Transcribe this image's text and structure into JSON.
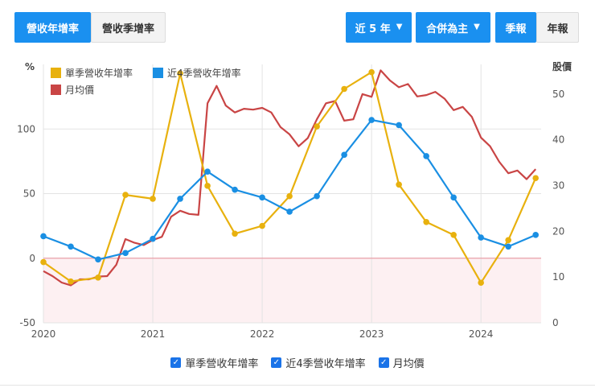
{
  "toolbar": {
    "tab_revenue_yoy": "營收年增率",
    "tab_revenue_qoq": "營收季增率",
    "period_dropdown": "近 5 年",
    "scope_dropdown": "合併為主",
    "freq_quarterly": "季報",
    "freq_annual": "年報"
  },
  "colors": {
    "quarterly_yoy": "#e8b10e",
    "rolling_4q_yoy": "#1a8fe3",
    "monthly_price": "#c94545",
    "zero_line": "#e8a0a8",
    "negative_fill": "#fdf0f2",
    "accent": "#1a90f0"
  },
  "legend_bottom": {
    "quarterly_yoy": "單季營收年增率",
    "rolling_4q_yoy": "近4季營收年增率",
    "monthly_price": "月均價"
  },
  "chart_data": {
    "type": "line",
    "left_axis": {
      "label": "%",
      "ticks": [
        "-50",
        "0",
        "50",
        "100"
      ],
      "range": [
        -50,
        150
      ]
    },
    "right_axis": {
      "label": "股價",
      "ticks": [
        "0",
        "10",
        "20",
        "30",
        "40",
        "50"
      ],
      "range": [
        0,
        56.5
      ]
    },
    "x_ticks": [
      "2020",
      "2021",
      "2022",
      "2023",
      "2024"
    ],
    "x_range": [
      2020.0,
      2024.55
    ],
    "legend_top": [
      {
        "key": "quarterly_yoy",
        "label": "單季營收年增率"
      },
      {
        "key": "rolling_4q_yoy",
        "label": "近4季營收年增率"
      },
      {
        "key": "monthly_price",
        "label": "月均價"
      }
    ],
    "series": [
      {
        "name": "單季營收年增率",
        "key": "quarterly_yoy",
        "axis": "left",
        "points": [
          [
            2020.0,
            -3
          ],
          [
            2020.25,
            -18
          ],
          [
            2020.5,
            -15
          ],
          [
            2020.75,
            49
          ],
          [
            2021.0,
            46
          ],
          [
            2021.25,
            143
          ],
          [
            2021.5,
            56
          ],
          [
            2021.75,
            19
          ],
          [
            2022.0,
            25
          ],
          [
            2022.25,
            48
          ],
          [
            2022.5,
            102
          ],
          [
            2022.75,
            131
          ],
          [
            2023.0,
            144
          ],
          [
            2023.25,
            57
          ],
          [
            2023.5,
            28
          ],
          [
            2023.75,
            18
          ],
          [
            2024.0,
            -19
          ],
          [
            2024.25,
            14
          ],
          [
            2024.5,
            62
          ]
        ]
      },
      {
        "name": "近4季營收年增率",
        "key": "rolling_4q_yoy",
        "axis": "left",
        "points": [
          [
            2020.0,
            17
          ],
          [
            2020.25,
            9
          ],
          [
            2020.5,
            -1
          ],
          [
            2020.75,
            4
          ],
          [
            2021.0,
            15
          ],
          [
            2021.25,
            46
          ],
          [
            2021.5,
            67
          ],
          [
            2021.75,
            53
          ],
          [
            2022.0,
            47
          ],
          [
            2022.25,
            36
          ],
          [
            2022.5,
            48
          ],
          [
            2022.75,
            80
          ],
          [
            2023.0,
            107
          ],
          [
            2023.25,
            103
          ],
          [
            2023.5,
            79
          ],
          [
            2023.75,
            47
          ],
          [
            2024.0,
            16
          ],
          [
            2024.25,
            9
          ],
          [
            2024.5,
            18
          ]
        ]
      },
      {
        "name": "月均價",
        "key": "monthly_price",
        "axis": "right",
        "points": [
          [
            2020.0,
            11.3
          ],
          [
            2020.083,
            10.2
          ],
          [
            2020.167,
            8.8
          ],
          [
            2020.25,
            8.2
          ],
          [
            2020.333,
            9.5
          ],
          [
            2020.417,
            9.5
          ],
          [
            2020.5,
            10.1
          ],
          [
            2020.583,
            10.2
          ],
          [
            2020.667,
            12.7
          ],
          [
            2020.75,
            18.3
          ],
          [
            2020.833,
            17.5
          ],
          [
            2020.917,
            17.0
          ],
          [
            2021.0,
            18.1
          ],
          [
            2021.083,
            18.8
          ],
          [
            2021.167,
            23.2
          ],
          [
            2021.25,
            24.5
          ],
          [
            2021.333,
            23.8
          ],
          [
            2021.417,
            23.6
          ],
          [
            2021.5,
            48.0
          ],
          [
            2021.583,
            51.8
          ],
          [
            2021.667,
            47.5
          ],
          [
            2021.75,
            46.0
          ],
          [
            2021.833,
            46.8
          ],
          [
            2021.917,
            46.6
          ],
          [
            2022.0,
            47.0
          ],
          [
            2022.083,
            46.0
          ],
          [
            2022.167,
            42.8
          ],
          [
            2022.25,
            41.2
          ],
          [
            2022.333,
            38.6
          ],
          [
            2022.417,
            40.4
          ],
          [
            2022.5,
            44.5
          ],
          [
            2022.583,
            48.0
          ],
          [
            2022.667,
            48.5
          ],
          [
            2022.75,
            44.2
          ],
          [
            2022.833,
            44.5
          ],
          [
            2022.917,
            50.0
          ],
          [
            2023.0,
            49.4
          ],
          [
            2023.083,
            55.2
          ],
          [
            2023.167,
            53.0
          ],
          [
            2023.25,
            51.5
          ],
          [
            2023.333,
            52.2
          ],
          [
            2023.417,
            49.5
          ],
          [
            2023.5,
            49.8
          ],
          [
            2023.583,
            50.5
          ],
          [
            2023.667,
            49.0
          ],
          [
            2023.75,
            46.5
          ],
          [
            2023.833,
            47.2
          ],
          [
            2023.917,
            45.0
          ],
          [
            2024.0,
            40.5
          ],
          [
            2024.083,
            38.6
          ],
          [
            2024.167,
            35.2
          ],
          [
            2024.25,
            32.7
          ],
          [
            2024.333,
            33.3
          ],
          [
            2024.417,
            31.4
          ],
          [
            2024.5,
            33.6
          ]
        ]
      }
    ]
  }
}
